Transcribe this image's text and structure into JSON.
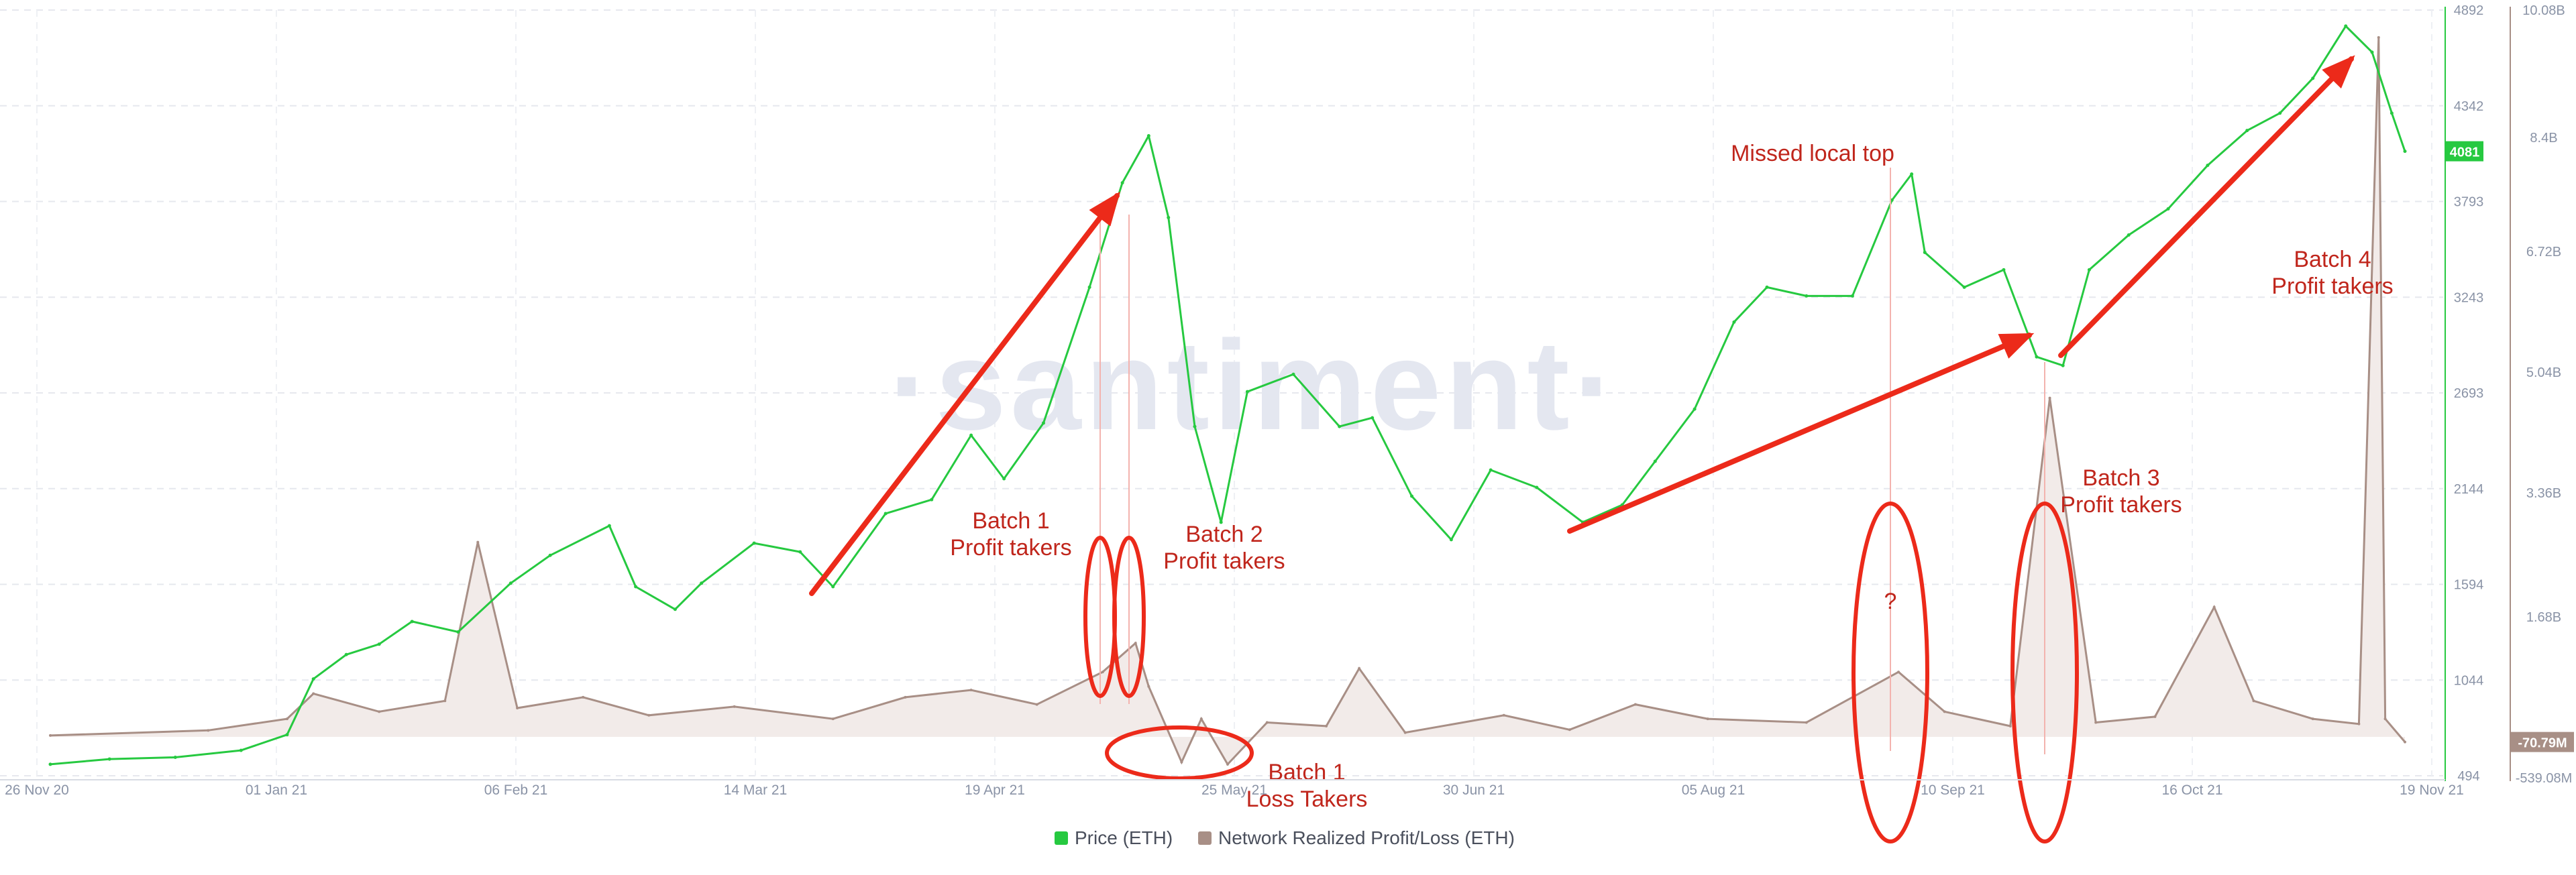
{
  "chart_data": {
    "type": "line",
    "watermark": "·santiment·",
    "x_labels": [
      "26 Nov 20",
      "01 Jan 21",
      "06 Feb 21",
      "14 Mar 21",
      "19 Apr 21",
      "25 May 21",
      "30 Jun 21",
      "05 Aug 21",
      "10 Sep 21",
      "16 Oct 21",
      "19 Nov 21"
    ],
    "y_left_ticks": [
      "4892",
      "4342",
      "3793",
      "3243",
      "2693",
      "2144",
      "1594",
      "1044",
      "494"
    ],
    "y_right_ticks": [
      "10.08B",
      "8.4B",
      "6.72B",
      "5.04B",
      "3.36B",
      "1.68B",
      "-539.08M"
    ],
    "y_left_range": [
      494,
      4892
    ],
    "y_right_range": [
      -539080000,
      10080000000
    ],
    "current_price_label": "4081",
    "current_pl_label": "-70.79M",
    "series": [
      {
        "name": "Price (ETH)",
        "color": "#26c940",
        "axis": "left",
        "points": [
          [
            "2020-11-26",
            560
          ],
          [
            "2020-12-05",
            590
          ],
          [
            "2020-12-15",
            600
          ],
          [
            "2020-12-25",
            640
          ],
          [
            "2021-01-01",
            730
          ],
          [
            "2021-01-05",
            1050
          ],
          [
            "2021-01-10",
            1190
          ],
          [
            "2021-01-15",
            1250
          ],
          [
            "2021-01-20",
            1380
          ],
          [
            "2021-01-27",
            1320
          ],
          [
            "2021-02-04",
            1600
          ],
          [
            "2021-02-10",
            1760
          ],
          [
            "2021-02-19",
            1930
          ],
          [
            "2021-02-23",
            1580
          ],
          [
            "2021-03-01",
            1450
          ],
          [
            "2021-03-05",
            1600
          ],
          [
            "2021-03-13",
            1830
          ],
          [
            "2021-03-20",
            1780
          ],
          [
            "2021-03-25",
            1580
          ],
          [
            "2021-04-02",
            2000
          ],
          [
            "2021-04-09",
            2080
          ],
          [
            "2021-04-15",
            2450
          ],
          [
            "2021-04-20",
            2200
          ],
          [
            "2021-04-26",
            2520
          ],
          [
            "2021-05-03",
            3300
          ],
          [
            "2021-05-08",
            3900
          ],
          [
            "2021-05-12",
            4170
          ],
          [
            "2021-05-15",
            3700
          ],
          [
            "2021-05-19",
            2500
          ],
          [
            "2021-05-23",
            1950
          ],
          [
            "2021-05-27",
            2700
          ],
          [
            "2021-06-03",
            2800
          ],
          [
            "2021-06-10",
            2500
          ],
          [
            "2021-06-15",
            2550
          ],
          [
            "2021-06-21",
            2100
          ],
          [
            "2021-06-27",
            1850
          ],
          [
            "2021-07-03",
            2250
          ],
          [
            "2021-07-10",
            2150
          ],
          [
            "2021-07-17",
            1950
          ],
          [
            "2021-07-23",
            2050
          ],
          [
            "2021-07-28",
            2300
          ],
          [
            "2021-08-03",
            2600
          ],
          [
            "2021-08-09",
            3100
          ],
          [
            "2021-08-14",
            3300
          ],
          [
            "2021-08-20",
            3250
          ],
          [
            "2021-08-27",
            3250
          ],
          [
            "2021-09-02",
            3800
          ],
          [
            "2021-09-05",
            3950
          ],
          [
            "2021-09-07",
            3500
          ],
          [
            "2021-09-13",
            3300
          ],
          [
            "2021-09-19",
            3400
          ],
          [
            "2021-09-24",
            2900
          ],
          [
            "2021-09-28",
            2850
          ],
          [
            "2021-10-02",
            3400
          ],
          [
            "2021-10-08",
            3600
          ],
          [
            "2021-10-14",
            3750
          ],
          [
            "2021-10-20",
            4000
          ],
          [
            "2021-10-26",
            4200
          ],
          [
            "2021-10-31",
            4300
          ],
          [
            "2021-11-05",
            4500
          ],
          [
            "2021-11-10",
            4800
          ],
          [
            "2021-11-14",
            4650
          ],
          [
            "2021-11-17",
            4300
          ],
          [
            "2021-11-19",
            4081
          ]
        ]
      },
      {
        "name": "Network Realized Profit/Loss (ETH)",
        "color": "#a88f86",
        "fill": "#f2ebe9",
        "axis": "right",
        "points": [
          [
            "2020-11-26",
            20000000
          ],
          [
            "2020-12-20",
            90000000
          ],
          [
            "2021-01-01",
            250000000
          ],
          [
            "2021-01-05",
            600000000
          ],
          [
            "2021-01-15",
            350000000
          ],
          [
            "2021-01-25",
            500000000
          ],
          [
            "2021-01-30",
            2700000000
          ],
          [
            "2021-02-05",
            400000000
          ],
          [
            "2021-02-15",
            550000000
          ],
          [
            "2021-02-25",
            300000000
          ],
          [
            "2021-03-10",
            420000000
          ],
          [
            "2021-03-25",
            250000000
          ],
          [
            "2021-04-05",
            550000000
          ],
          [
            "2021-04-15",
            650000000
          ],
          [
            "2021-04-25",
            450000000
          ],
          [
            "2021-05-05",
            900000000
          ],
          [
            "2021-05-10",
            1300000000
          ],
          [
            "2021-05-12",
            700000000
          ],
          [
            "2021-05-17",
            -350000000
          ],
          [
            "2021-05-20",
            250000000
          ],
          [
            "2021-05-24",
            -380000000
          ],
          [
            "2021-05-30",
            200000000
          ],
          [
            "2021-06-08",
            150000000
          ],
          [
            "2021-06-13",
            950000000
          ],
          [
            "2021-06-20",
            60000000
          ],
          [
            "2021-07-05",
            300000000
          ],
          [
            "2021-07-15",
            100000000
          ],
          [
            "2021-07-25",
            450000000
          ],
          [
            "2021-08-05",
            250000000
          ],
          [
            "2021-08-20",
            200000000
          ],
          [
            "2021-09-03",
            900000000
          ],
          [
            "2021-09-10",
            350000000
          ],
          [
            "2021-09-20",
            150000000
          ],
          [
            "2021-09-26",
            4700000000
          ],
          [
            "2021-10-03",
            200000000
          ],
          [
            "2021-10-12",
            280000000
          ],
          [
            "2021-10-21",
            1800000000
          ],
          [
            "2021-10-27",
            500000000
          ],
          [
            "2021-11-05",
            250000000
          ],
          [
            "2021-11-12",
            180000000
          ],
          [
            "2021-11-15",
            9700000000
          ],
          [
            "2021-11-16",
            250000000
          ],
          [
            "2021-11-19",
            -70790000
          ]
        ]
      }
    ],
    "arrows": [
      {
        "from": [
          "2021-03-29",
          1560
        ],
        "to": [
          "2021-05-10",
          3800
        ]
      },
      {
        "from": [
          "2021-07-25",
          1900
        ],
        "to": [
          "2021-09-25",
          2940
        ]
      },
      {
        "from": [
          "2021-09-29",
          2940
        ],
        "to": [
          "2021-11-13",
          4700
        ]
      }
    ],
    "annotations": [
      {
        "id": "batch1-profit",
        "lines": [
          "Batch 1",
          "Profit takers"
        ]
      },
      {
        "id": "batch2-profit",
        "lines": [
          "Batch 2",
          "Profit takers"
        ]
      },
      {
        "id": "batch1-loss",
        "lines": [
          "Batch 1",
          "Loss Takers"
        ]
      },
      {
        "id": "missed-top",
        "lines": [
          "Missed local top"
        ]
      },
      {
        "id": "question",
        "lines": [
          "?"
        ]
      },
      {
        "id": "batch3-profit",
        "lines": [
          "Batch 3",
          "Profit takers"
        ]
      },
      {
        "id": "batch4-profit",
        "lines": [
          "Batch 4",
          "Profit takers"
        ]
      }
    ]
  },
  "legend": {
    "items": [
      {
        "label": "Price (ETH)",
        "color": "#26c940"
      },
      {
        "label": "Network Realized Profit/Loss (ETH)",
        "color": "#a88f86"
      }
    ]
  }
}
